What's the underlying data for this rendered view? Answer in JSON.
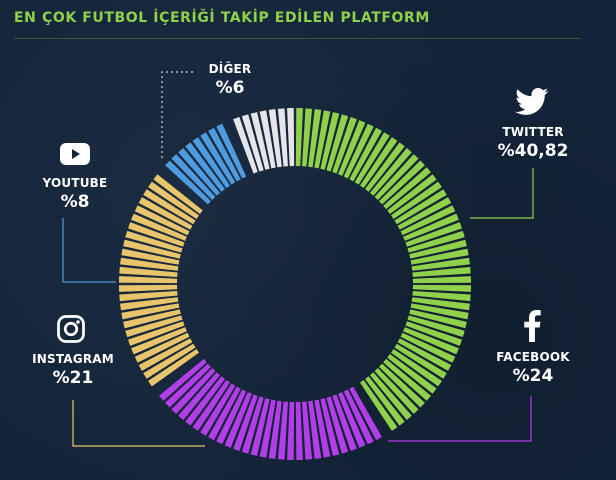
{
  "title": "EN ÇOK FUTBOL İÇERİĞİ TAKİP EDİLEN PLATFORM",
  "labels": {
    "twitter": {
      "name": "TWITTER",
      "value": "%40,82"
    },
    "facebook": {
      "name": "FACEBOOK",
      "value": "%24"
    },
    "instagram": {
      "name": "INSTAGRAM",
      "value": "%21"
    },
    "youtube": {
      "name": "YOUTUBE",
      "value": "%8"
    },
    "diger": {
      "name": "DİĞER",
      "value": "%6"
    }
  },
  "icons": {
    "twitter": "twitter-bird-icon",
    "facebook": "facebook-f-icon",
    "instagram": "instagram-camera-icon",
    "youtube": "youtube-play-icon"
  },
  "chart_data": {
    "type": "pie",
    "variant": "donut",
    "title": "EN ÇOK FUTBOL İÇERİĞİ TAKİP EDİLEN PLATFORM",
    "categories": [
      "TWITTER",
      "FACEBOOK",
      "INSTAGRAM",
      "YOUTUBE",
      "DİĞER"
    ],
    "values": [
      40.82,
      24,
      21,
      8,
      6
    ],
    "value_labels": [
      "%40,82",
      "%24",
      "%21",
      "%8",
      "%6"
    ],
    "colors": [
      "#8fd14a",
      "#b23ee8",
      "#e8c56b",
      "#4e9be0",
      "#e6e6ea"
    ],
    "legend": "leader-line labels around ring",
    "start": "top, clockwise"
  }
}
